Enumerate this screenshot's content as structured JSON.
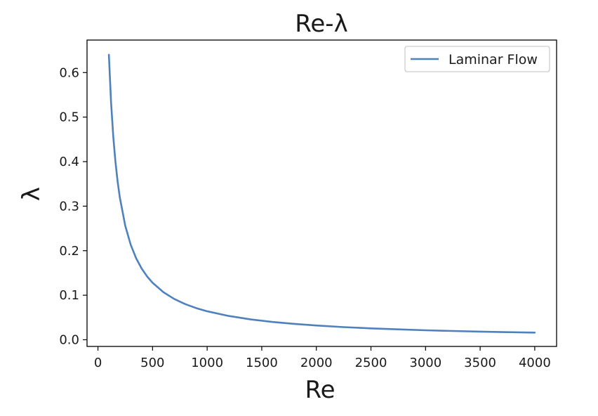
{
  "chart_data": {
    "type": "line",
    "title": "Re-λ",
    "xlabel": "Re",
    "ylabel": "λ",
    "xlim": [
      -100,
      4200
    ],
    "ylim": [
      -0.015,
      0.673
    ],
    "xticks": [
      0,
      500,
      1000,
      1500,
      2000,
      2500,
      3000,
      3500,
      4000
    ],
    "xtick_labels": [
      "0",
      "500",
      "1000",
      "1500",
      "2000",
      "2500",
      "3000",
      "3500",
      "4000"
    ],
    "yticks": [
      0.0,
      0.1,
      0.2,
      0.3,
      0.4,
      0.5,
      0.6
    ],
    "ytick_labels": [
      "0.0",
      "0.1",
      "0.2",
      "0.3",
      "0.4",
      "0.5",
      "0.6"
    ],
    "grid": false,
    "legend": {
      "position": "top-right"
    },
    "series": [
      {
        "name": "Laminar Flow",
        "color": "#4f81bd",
        "x": [
          100,
          120,
          140,
          160,
          180,
          200,
          250,
          300,
          350,
          400,
          450,
          500,
          600,
          700,
          800,
          900,
          1000,
          1200,
          1400,
          1600,
          1800,
          2000,
          2250,
          2500,
          2750,
          3000,
          3250,
          3500,
          3750,
          4000
        ],
        "y": [
          0.64,
          0.5333,
          0.4571,
          0.4,
          0.3556,
          0.32,
          0.256,
          0.2133,
          0.1829,
          0.16,
          0.1422,
          0.128,
          0.1067,
          0.0914,
          0.08,
          0.0711,
          0.064,
          0.0533,
          0.0457,
          0.04,
          0.0356,
          0.032,
          0.0284,
          0.0256,
          0.0233,
          0.0213,
          0.0197,
          0.0183,
          0.0171,
          0.016
        ]
      }
    ]
  }
}
